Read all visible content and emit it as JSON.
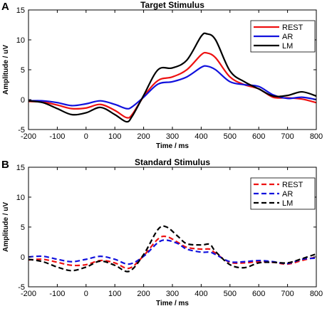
{
  "colors": {
    "REST": "#ee1111",
    "AR": "#1111dd",
    "LM": "#000000"
  },
  "chart_data": [
    {
      "type": "line",
      "panel": "A",
      "title": "Target Stimulus",
      "xlabel": "Time / ms",
      "ylabel": "Amplitude / uV",
      "xlim": [
        -200,
        800
      ],
      "ylim": [
        -5,
        15
      ],
      "xticks": [
        -200,
        -100,
        0,
        100,
        200,
        300,
        400,
        500,
        600,
        700,
        800
      ],
      "yticks": [
        -5,
        0,
        5,
        10,
        15
      ],
      "line_style": "solid",
      "legend_position": "top-right",
      "series": [
        {
          "name": "REST",
          "color": "#ee1111",
          "x": [
            -200,
            -150,
            -100,
            -50,
            0,
            50,
            100,
            140,
            160,
            200,
            250,
            300,
            350,
            400,
            420,
            450,
            500,
            550,
            600,
            650,
            700,
            750,
            800
          ],
          "y": [
            -0.3,
            -0.4,
            -0.9,
            -1.5,
            -1.4,
            -0.8,
            -1.8,
            -3.0,
            -2.5,
            0.5,
            3.2,
            3.8,
            5.0,
            7.5,
            7.8,
            7.0,
            3.8,
            2.5,
            1.8,
            0.4,
            0.3,
            0.1,
            -0.5
          ]
        },
        {
          "name": "AR",
          "color": "#1111dd",
          "x": [
            -200,
            -150,
            -100,
            -50,
            0,
            50,
            100,
            140,
            160,
            200,
            250,
            300,
            350,
            400,
            420,
            450,
            500,
            550,
            600,
            650,
            700,
            750,
            800
          ],
          "y": [
            -0.2,
            -0.2,
            -0.5,
            -1.0,
            -0.7,
            -0.2,
            -0.8,
            -1.5,
            -1.2,
            0.4,
            2.6,
            3.0,
            3.8,
            5.4,
            5.6,
            5.0,
            3.0,
            2.5,
            2.2,
            0.8,
            0.2,
            0.4,
            0.0
          ]
        },
        {
          "name": "LM",
          "color": "#000000",
          "x": [
            -200,
            -150,
            -100,
            -50,
            0,
            50,
            100,
            140,
            160,
            200,
            250,
            300,
            350,
            400,
            420,
            450,
            500,
            550,
            600,
            650,
            700,
            750,
            800
          ],
          "y": [
            -0.2,
            -0.5,
            -1.5,
            -2.5,
            -2.2,
            -1.3,
            -2.5,
            -3.7,
            -2.8,
            0.7,
            5.0,
            5.3,
            6.6,
            10.6,
            11.0,
            10.0,
            4.8,
            3.0,
            1.8,
            0.6,
            0.7,
            1.3,
            0.6
          ]
        }
      ]
    },
    {
      "type": "line",
      "panel": "B",
      "title": "Standard Stimulus",
      "xlabel": "Time / ms",
      "ylabel": "Amplitude / uV",
      "xlim": [
        -200,
        800
      ],
      "ylim": [
        -5,
        15
      ],
      "xticks": [
        -200,
        -100,
        0,
        100,
        200,
        300,
        400,
        500,
        600,
        700,
        800
      ],
      "yticks": [
        -5,
        0,
        5,
        10,
        15
      ],
      "line_style": "dashed",
      "legend_position": "top-right",
      "series": [
        {
          "name": "REST",
          "color": "#ee1111",
          "x": [
            -200,
            -150,
            -100,
            -50,
            0,
            50,
            100,
            150,
            200,
            250,
            280,
            320,
            350,
            400,
            430,
            450,
            500,
            550,
            600,
            650,
            700,
            750,
            800
          ],
          "y": [
            -0.5,
            -0.4,
            -0.9,
            -1.4,
            -1.3,
            -0.6,
            -1.0,
            -1.9,
            0.2,
            3.0,
            3.4,
            2.4,
            1.6,
            1.3,
            1.3,
            0.6,
            -0.9,
            -1.0,
            -0.8,
            -0.9,
            -1.2,
            -0.6,
            0.0
          ]
        },
        {
          "name": "AR",
          "color": "#1111dd",
          "x": [
            -200,
            -150,
            -100,
            -50,
            0,
            50,
            100,
            150,
            200,
            250,
            280,
            320,
            350,
            400,
            430,
            450,
            500,
            550,
            600,
            650,
            700,
            750,
            800
          ],
          "y": [
            0.0,
            0.1,
            -0.4,
            -0.8,
            -0.4,
            0.1,
            -0.4,
            -1.2,
            0.1,
            2.4,
            2.8,
            2.2,
            1.3,
            0.8,
            0.8,
            0.4,
            -0.8,
            -0.8,
            -0.6,
            -0.8,
            -1.1,
            -0.4,
            -0.2
          ]
        },
        {
          "name": "LM",
          "color": "#000000",
          "x": [
            -200,
            -150,
            -100,
            -50,
            0,
            50,
            100,
            150,
            200,
            250,
            280,
            320,
            350,
            400,
            430,
            450,
            500,
            550,
            600,
            650,
            700,
            750,
            800
          ],
          "y": [
            -0.4,
            -0.8,
            -1.7,
            -2.3,
            -1.7,
            -0.7,
            -1.4,
            -2.4,
            0.4,
            4.6,
            5.0,
            3.4,
            2.2,
            2.0,
            2.1,
            0.9,
            -1.3,
            -1.8,
            -1.0,
            -0.9,
            -1.0,
            -0.3,
            0.5
          ]
        }
      ]
    }
  ]
}
